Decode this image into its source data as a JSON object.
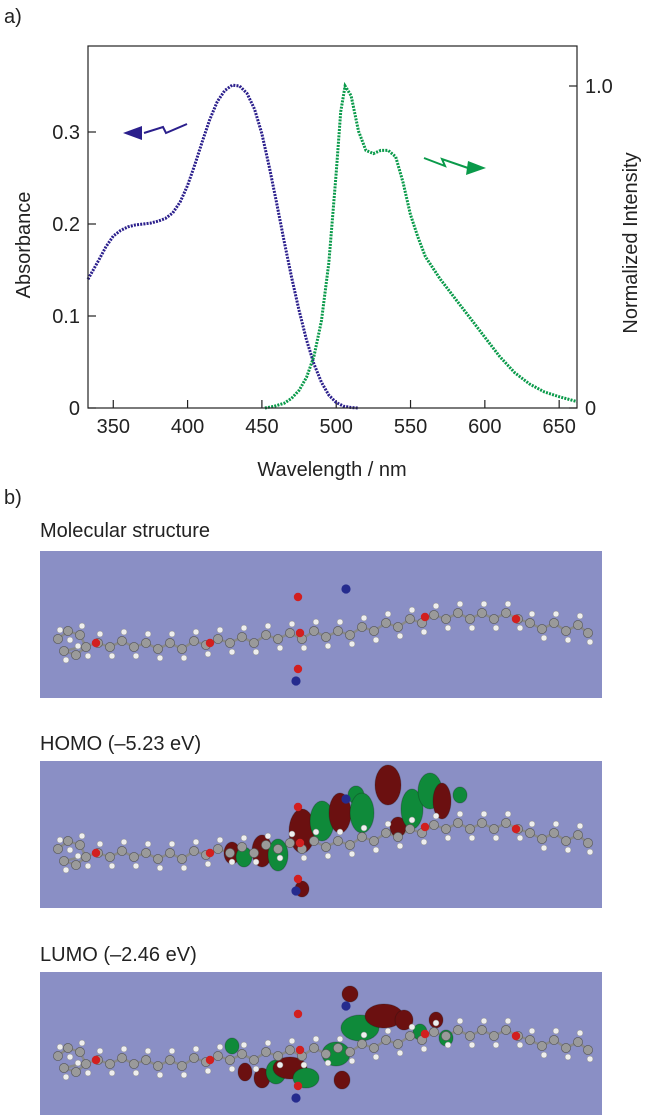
{
  "panel_a": "a)",
  "panel_b": "b)",
  "chart_data": {
    "type": "line",
    "xlabel": "Wavelength / nm",
    "ylabel_left": "Absorbance",
    "ylabel_right": "Normalized Intensity",
    "xlim": [
      333,
      662
    ],
    "ylim_left": [
      0,
      0.35
    ],
    "ylim_right": [
      0,
      1.0
    ],
    "x_ticks": [
      350,
      400,
      450,
      500,
      550,
      600,
      650
    ],
    "y_left_ticks": [
      "0",
      "0.1",
      "0.2",
      "0.3"
    ],
    "y_right_ticks": [
      "0",
      "1.0"
    ],
    "series": [
      {
        "axis": "left",
        "color": "#2b1f8c",
        "x": [
          333,
          340,
          345,
          350,
          355,
          360,
          365,
          370,
          375,
          380,
          385,
          390,
          395,
          400,
          405,
          410,
          415,
          420,
          425,
          430,
          435,
          440,
          445,
          450,
          455,
          460,
          465,
          470,
          475,
          480,
          485,
          490,
          495,
          500,
          505,
          510,
          515
        ],
        "y": [
          0.14,
          0.16,
          0.175,
          0.187,
          0.193,
          0.197,
          0.199,
          0.2,
          0.201,
          0.203,
          0.206,
          0.212,
          0.224,
          0.242,
          0.265,
          0.29,
          0.314,
          0.333,
          0.345,
          0.351,
          0.35,
          0.342,
          0.325,
          0.298,
          0.262,
          0.222,
          0.181,
          0.142,
          0.106,
          0.074,
          0.048,
          0.028,
          0.014,
          0.006,
          0.002,
          0.0005,
          0
        ]
      },
      {
        "axis": "right",
        "color": "#0a9a4a",
        "x": [
          452,
          458,
          465,
          470,
          475,
          480,
          485,
          490,
          495,
          500,
          503,
          506,
          510,
          515,
          520,
          525,
          530,
          535,
          540,
          545,
          550,
          555,
          560,
          570,
          580,
          590,
          600,
          610,
          620,
          630,
          640,
          650,
          662
        ],
        "y": [
          0,
          0.005,
          0.015,
          0.03,
          0.055,
          0.095,
          0.16,
          0.27,
          0.45,
          0.73,
          0.92,
          1.0,
          0.97,
          0.86,
          0.8,
          0.79,
          0.8,
          0.8,
          0.78,
          0.7,
          0.6,
          0.53,
          0.47,
          0.4,
          0.34,
          0.28,
          0.22,
          0.16,
          0.11,
          0.075,
          0.05,
          0.035,
          0.02
        ]
      }
    ]
  },
  "panel_b_titles": {
    "structure": "Molecular structure",
    "homo": "HOMO (–5.23 eV)",
    "lumo": "LUMO (–2.46 eV)"
  },
  "colors": {
    "absorbance": "#2b1f8c",
    "emission": "#0a9a4a",
    "orbital_box": "#8a8fc5",
    "orbital_positive": "#0f8a3a",
    "orbital_negative": "#6b1010",
    "oxygen": "#d21f1f",
    "nitrogen": "#252b8e",
    "carbon": "#8a8a8a",
    "hydrogen": "#eeeeee"
  }
}
